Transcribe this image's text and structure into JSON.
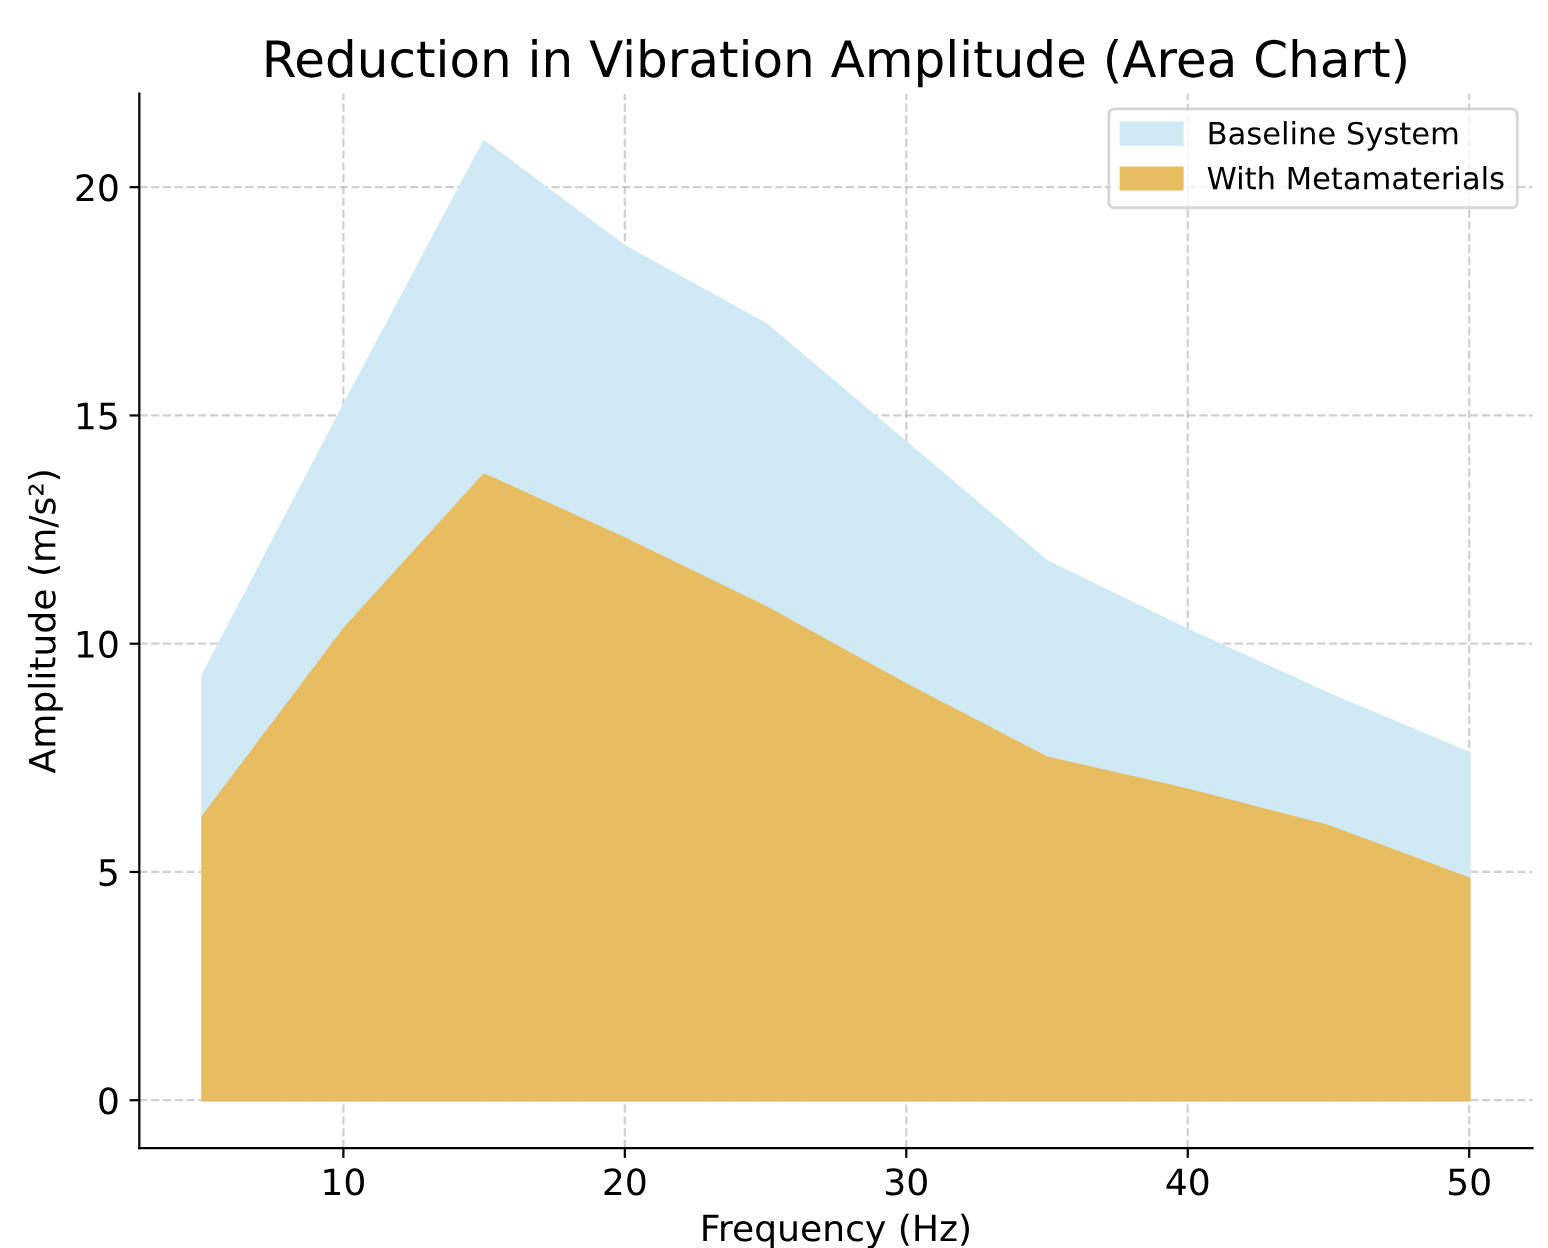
{
  "chart_data": {
    "type": "area",
    "title": "Reduction in Vibration Amplitude (Area Chart)",
    "xlabel": "Frequency (Hz)",
    "ylabel": "Amplitude (m/s²)",
    "x": [
      5,
      10,
      15,
      20,
      25,
      30,
      35,
      40,
      45,
      50
    ],
    "series": [
      {
        "name": "Baseline System",
        "color": "#cfe9f5",
        "values": [
          9.3,
          15.2,
          21.0,
          18.7,
          17.0,
          14.4,
          11.8,
          10.3,
          8.9,
          7.6
        ]
      },
      {
        "name": "With Metamaterials",
        "color": "#e8bd62",
        "values": [
          6.2,
          10.3,
          13.7,
          12.3,
          10.8,
          9.1,
          7.5,
          6.8,
          6.0,
          4.85
        ]
      }
    ],
    "xlim": [
      2.75,
      52.25
    ],
    "xticks": [
      10,
      20,
      30,
      40,
      50
    ],
    "ylim": [
      -1.05,
      22.05
    ],
    "yticks": [
      0,
      5,
      10,
      15,
      20
    ],
    "grid": true,
    "legend": "top right",
    "line_style": "dashed"
  }
}
